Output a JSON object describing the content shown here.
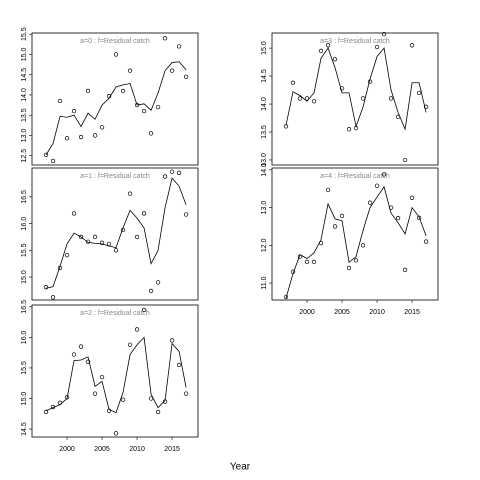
{
  "xlabel": "Year",
  "chart_data": [
    {
      "type": "line",
      "title": "a=0 : f=Residual catch",
      "x": [
        1997,
        1998,
        1999,
        2000,
        2001,
        2002,
        2003,
        2004,
        2005,
        2006,
        2007,
        2008,
        2009,
        2010,
        2011,
        2012,
        2013,
        2014,
        2015,
        2016,
        2017
      ],
      "xlim": [
        1995,
        2018.7
      ],
      "ylim": [
        12.27,
        15.53
      ],
      "yticks": [
        12.5,
        {
          "value": 13,
          "label": "13.0"
        },
        13.5,
        {
          "value": 14,
          "label": "14.0"
        },
        14.5,
        {
          "value": 15,
          "label": "15.0"
        },
        15.5
      ],
      "series": [
        {
          "style": "points",
          "color": "#000000",
          "values": [
            12.52,
            12.37,
            13.85,
            12.93,
            13.6,
            12.96,
            14.1,
            13.0,
            13.2,
            13.97,
            15.0,
            14.1,
            14.6,
            13.75,
            13.6,
            13.05,
            13.7,
            15.4,
            14.6,
            15.2,
            14.45
          ]
        },
        {
          "style": "line",
          "color": "#000000",
          "values": [
            12.52,
            12.8,
            13.47,
            13.45,
            13.5,
            13.22,
            13.55,
            13.4,
            13.75,
            13.92,
            14.2,
            14.25,
            14.28,
            13.75,
            13.78,
            13.62,
            14.05,
            14.6,
            14.8,
            14.82,
            14.62
          ]
        }
      ]
    },
    {
      "type": "line",
      "title": "a=1 : f=Residual catch",
      "x": [
        1997,
        1998,
        1999,
        2000,
        2001,
        2002,
        2003,
        2004,
        2005,
        2006,
        2007,
        2008,
        2009,
        2010,
        2011,
        2012,
        2013,
        2014,
        2015,
        2016,
        2017
      ],
      "xlim": [
        1995,
        2018.7
      ],
      "ylim": [
        14.57,
        17.04
      ],
      "yticks": [
        {
          "value": 15,
          "label": "15.0"
        },
        15.5,
        {
          "value": 16,
          "label": "16.0"
        },
        16.5
      ],
      "series": [
        {
          "style": "points",
          "color": "#000000",
          "values": [
            14.81,
            14.62,
            15.17,
            15.41,
            16.19,
            15.75,
            15.66,
            15.75,
            15.64,
            15.62,
            15.5,
            15.88,
            16.56,
            15.75,
            16.19,
            14.74,
            14.9,
            16.88,
            16.97,
            16.95,
            16.17
          ]
        },
        {
          "style": "line",
          "color": "#000000",
          "values": [
            14.79,
            14.82,
            15.2,
            15.62,
            15.82,
            15.75,
            15.65,
            15.63,
            15.62,
            15.58,
            15.55,
            15.92,
            16.25,
            16.1,
            15.92,
            15.25,
            15.5,
            16.3,
            16.85,
            16.7,
            16.35
          ]
        }
      ]
    },
    {
      "type": "line",
      "title": "a=2 : f=Residual catch",
      "x": [
        1997,
        1998,
        1999,
        2000,
        2001,
        2002,
        2003,
        2004,
        2005,
        2006,
        2007,
        2008,
        2009,
        2010,
        2011,
        2012,
        2013,
        2014,
        2015,
        2016,
        2017
      ],
      "xlim": [
        1995,
        2018.7
      ],
      "ylim": [
        14.37,
        16.53
      ],
      "xticks": [
        2000,
        2005,
        2010,
        2015
      ],
      "yticks": [
        14.5,
        {
          "value": 15,
          "label": "15.0"
        },
        15.5,
        {
          "value": 16,
          "label": "16.0"
        },
        16.5
      ],
      "series": [
        {
          "style": "points",
          "color": "#000000",
          "values": [
            14.78,
            14.86,
            14.93,
            15.02,
            15.72,
            15.85,
            15.6,
            15.08,
            15.35,
            14.8,
            14.43,
            14.98,
            15.88,
            16.13,
            16.45,
            15.0,
            14.78,
            14.95,
            15.95,
            15.55,
            15.08
          ]
        },
        {
          "style": "line",
          "color": "#000000",
          "values": [
            14.8,
            14.85,
            14.9,
            15.0,
            15.62,
            15.63,
            15.68,
            15.2,
            15.28,
            14.82,
            14.77,
            15.1,
            15.72,
            15.88,
            16.0,
            15.07,
            14.85,
            14.97,
            15.9,
            15.77,
            15.18
          ]
        }
      ]
    },
    {
      "type": "line",
      "title": "a=3 : f=Residual catch",
      "x": [
        1997,
        1998,
        1999,
        2000,
        2001,
        2002,
        2003,
        2004,
        2005,
        2006,
        2007,
        2008,
        2009,
        2010,
        2011,
        2012,
        2013,
        2014,
        2015,
        2016,
        2017
      ],
      "xlim": [
        1995,
        2018.7
      ],
      "ylim": [
        12.91,
        15.27
      ],
      "yticks": [
        {
          "value": 13,
          "label": "13.0"
        },
        13.5,
        {
          "value": 14,
          "label": "14.0"
        },
        14.5,
        {
          "value": 15,
          "label": "15.0"
        }
      ],
      "series": [
        {
          "style": "points",
          "color": "#000000",
          "values": [
            13.6,
            14.38,
            14.1,
            14.1,
            14.05,
            14.95,
            15.05,
            14.8,
            14.28,
            13.55,
            13.57,
            14.1,
            14.4,
            15.02,
            15.25,
            14.1,
            13.77,
            13.0,
            15.05,
            14.2,
            13.95
          ]
        },
        {
          "style": "line",
          "color": "#000000",
          "values": [
            13.62,
            14.22,
            14.15,
            14.05,
            14.2,
            14.82,
            15.0,
            14.65,
            14.2,
            14.2,
            13.6,
            13.95,
            14.45,
            14.85,
            15.0,
            14.25,
            13.85,
            13.55,
            14.38,
            14.38,
            13.85
          ]
        }
      ]
    },
    {
      "type": "line",
      "title": "a=4 : f=Residual catch",
      "x": [
        1997,
        1998,
        1999,
        2000,
        2001,
        2002,
        2003,
        2004,
        2005,
        2006,
        2007,
        2008,
        2009,
        2010,
        2011,
        2012,
        2013,
        2014,
        2015,
        2016,
        2017
      ],
      "xlim": [
        1995,
        2018.7
      ],
      "ylim": [
        10.55,
        14.05
      ],
      "xticks": [
        2000,
        2005,
        2010,
        2015
      ],
      "yticks": [
        {
          "value": 11,
          "label": "11.0"
        },
        {
          "value": 12,
          "label": "12.0"
        },
        {
          "value": 13,
          "label": "13.0"
        },
        {
          "value": 14,
          "label": "14.0"
        }
      ],
      "series": [
        {
          "style": "points",
          "color": "#000000",
          "values": [
            10.63,
            11.3,
            11.7,
            11.56,
            11.56,
            12.06,
            13.47,
            12.5,
            12.78,
            11.4,
            11.6,
            12.0,
            13.13,
            13.58,
            13.88,
            13.0,
            12.72,
            11.35,
            13.26,
            12.73,
            12.1
          ]
        },
        {
          "style": "line",
          "color": "#000000",
          "values": [
            10.6,
            11.25,
            11.75,
            11.65,
            11.8,
            12.15,
            13.1,
            12.7,
            12.65,
            11.55,
            11.7,
            12.4,
            13.0,
            13.28,
            13.55,
            12.85,
            12.6,
            12.3,
            13.0,
            12.75,
            12.25
          ]
        }
      ]
    }
  ]
}
